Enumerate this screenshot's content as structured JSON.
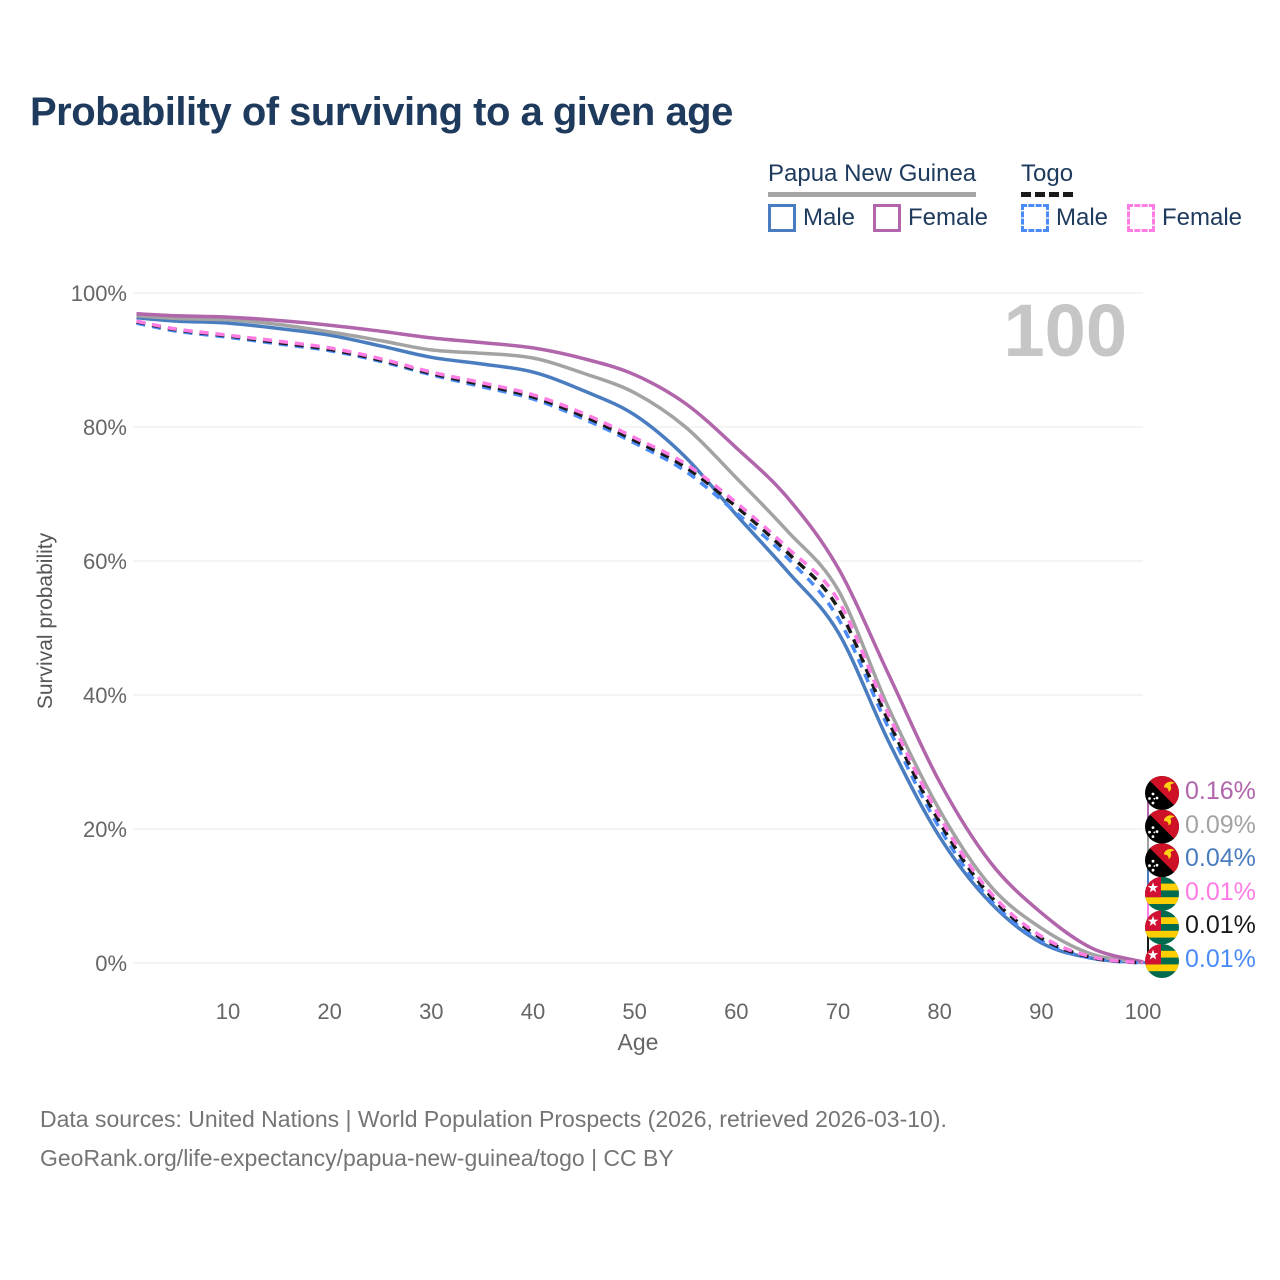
{
  "title": "Probability of surviving to a given age",
  "age_counter": "100",
  "legend": {
    "png": {
      "label": "Papua New Guinea",
      "male_label": "Male",
      "female_label": "Female",
      "male_color": "#4a7dbf",
      "female_color": "#b165ab",
      "underline_color": "#a6a6a6"
    },
    "togo": {
      "label": "Togo",
      "male_label": "Male",
      "female_label": "Female",
      "male_color": "#4b8bf5",
      "female_color": "#ff7ce4",
      "underline_color": "#1a1a1a"
    }
  },
  "end_labels": [
    {
      "flag": "png",
      "country": "Papua New Guinea",
      "series": "Female",
      "value": "0.16%",
      "color": "#b165ab"
    },
    {
      "flag": "png",
      "country": "Papua New Guinea",
      "series": "Total",
      "value": "0.09%",
      "color": "#a3a3a3"
    },
    {
      "flag": "png",
      "country": "Papua New Guinea",
      "series": "Male",
      "value": "0.04%",
      "color": "#4a7dbf"
    },
    {
      "flag": "togo",
      "country": "Togo",
      "series": "Female",
      "value": "0.01%",
      "color": "#ff7ce4"
    },
    {
      "flag": "togo",
      "country": "Togo",
      "series": "Total",
      "value": "0.01%",
      "color": "#1a1a1a"
    },
    {
      "flag": "togo",
      "country": "Togo",
      "series": "Male",
      "value": "0.01%",
      "color": "#4b8bf5"
    }
  ],
  "footer": {
    "line1": "Data sources: United Nations | World Population Prospects (2026, retrieved 2026-03-10).",
    "line2": "GeoRank.org/life-expectancy/papua-new-guinea/togo | CC BY"
  },
  "chart_data": {
    "type": "line",
    "title": "Probability of surviving to a given age",
    "xlabel": "Age",
    "ylabel": "Survival probability",
    "xlim": [
      1,
      100
    ],
    "ylim": [
      0,
      100
    ],
    "grid": "horizontal",
    "x_ticks": [
      10,
      20,
      30,
      40,
      50,
      60,
      70,
      80,
      90,
      100
    ],
    "y_ticks": [
      0,
      20,
      40,
      60,
      80,
      100
    ],
    "y_tick_suffix": "%",
    "ages": [
      1,
      5,
      10,
      15,
      20,
      25,
      30,
      35,
      40,
      45,
      50,
      55,
      60,
      65,
      70,
      75,
      80,
      85,
      90,
      95,
      100
    ],
    "series": [
      {
        "id": "png-female",
        "name": "Papua New Guinea Female",
        "color": "#b165ab",
        "dashed": false,
        "values": [
          96.9,
          96.6,
          96.4,
          95.9,
          95.2,
          94.3,
          93.3,
          92.6,
          91.8,
          90.2,
          87.8,
          83.5,
          76.9,
          69.5,
          59.0,
          43.0,
          27.0,
          15.0,
          7.5,
          2.2,
          0.16
        ]
      },
      {
        "id": "png-total",
        "name": "Papua New Guinea Total",
        "color": "#a3a3a3",
        "dashed": false,
        "values": [
          96.6,
          96.2,
          96.0,
          95.3,
          94.2,
          92.9,
          91.5,
          91.0,
          90.3,
          88.0,
          85.1,
          80.0,
          72.4,
          64.5,
          55.7,
          38.0,
          22.8,
          11.5,
          5.2,
          1.3,
          0.09
        ]
      },
      {
        "id": "png-male",
        "name": "Papua New Guinea Male",
        "color": "#4a7dbf",
        "dashed": false,
        "values": [
          96.3,
          95.8,
          95.5,
          94.7,
          93.7,
          92.1,
          90.4,
          89.4,
          88.2,
          85.4,
          81.8,
          75.5,
          66.9,
          58.5,
          49.4,
          33.0,
          18.8,
          9.0,
          3.0,
          0.7,
          0.04
        ]
      },
      {
        "id": "togo-female",
        "name": "Togo Female",
        "color": "#ff7ce4",
        "dashed": true,
        "values": [
          95.8,
          94.6,
          93.7,
          92.8,
          91.8,
          90.2,
          88.2,
          86.6,
          84.8,
          82.0,
          78.4,
          74.5,
          68.7,
          62.0,
          54.2,
          37.0,
          21.8,
          10.5,
          4.0,
          0.9,
          0.01
        ]
      },
      {
        "id": "togo-total",
        "name": "Togo Total",
        "color": "#1a1a1a",
        "dashed": true,
        "values": [
          95.7,
          94.5,
          93.6,
          92.6,
          91.6,
          90.0,
          88.0,
          86.3,
          84.5,
          81.6,
          78.0,
          74.0,
          68.1,
          61.3,
          53.0,
          36.0,
          21.0,
          10.0,
          3.7,
          0.8,
          0.01
        ]
      },
      {
        "id": "togo-male",
        "name": "Togo Male",
        "color": "#4b8bf5",
        "dashed": true,
        "values": [
          95.5,
          94.3,
          93.4,
          92.4,
          91.4,
          89.8,
          87.8,
          86.0,
          84.2,
          81.2,
          77.6,
          73.4,
          67.2,
          60.5,
          51.5,
          35.0,
          20.1,
          9.4,
          3.3,
          0.7,
          0.01
        ]
      }
    ]
  }
}
